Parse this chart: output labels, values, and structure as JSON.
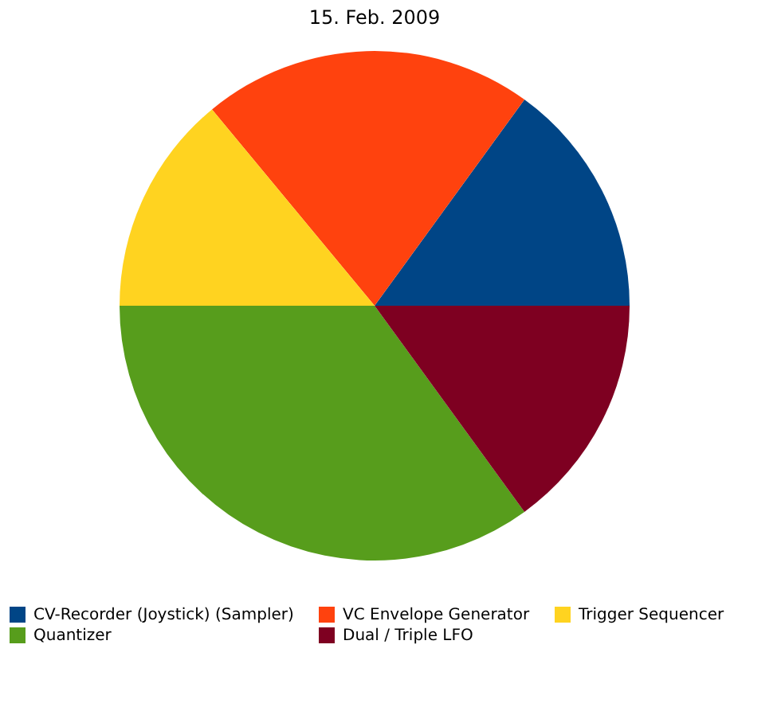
{
  "chart_data": {
    "type": "pie",
    "title": "15. Feb. 2009",
    "categories": [
      "CV-Recorder (Joystick) (Sampler)",
      "VC Envelope Generator",
      "Trigger Sequencer",
      "Quantizer",
      "Dual / Triple LFO"
    ],
    "values": [
      15,
      21,
      14,
      35,
      15
    ],
    "colors": [
      "#004586",
      "#ff420e",
      "#ffd320",
      "#579d1c",
      "#7e0021"
    ],
    "legend": "bottom"
  }
}
